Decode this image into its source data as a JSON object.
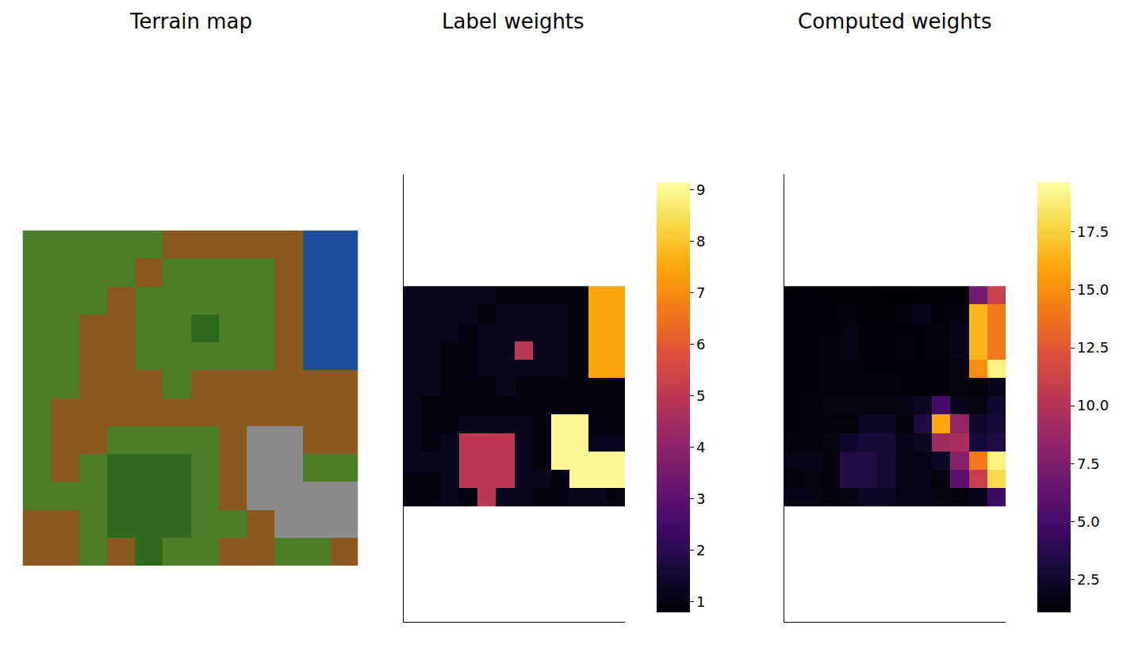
{
  "chart_data": [
    {
      "type": "image",
      "title": "Terrain map",
      "grid": [
        "GGGGGDDDDDWW",
        "GGGGDGGGGDWW",
        "GGGDGGGGGDWW",
        "GGDDGGFGGDWW",
        "GGDDGGGGGDWW",
        "GGDDDGDDDDDD",
        "GDDDDDDDDDDD",
        "GDDGGGGDRRDD",
        "GDGFFFGDRRGG",
        "GGGFFFGDRRRR",
        "DDGFFFGGDRRR",
        "DDGDFGGDDGGD"
      ],
      "colors": {
        "G": "#4e7d2b",
        "D": "#8b5a1e",
        "W": "#1f4f9a",
        "F": "#2d6a1e",
        "R": "#8a8a8a"
      }
    },
    {
      "type": "heatmap",
      "title": "Label weights",
      "z": [
        [
          1.2,
          1.2,
          1.2,
          1.2,
          1.2,
          1,
          1,
          1,
          1,
          1,
          7.5,
          7.5
        ],
        [
          1.2,
          1.2,
          1.2,
          1.2,
          1,
          1.2,
          1.2,
          1.2,
          1.2,
          1,
          7.5,
          7.5
        ],
        [
          1.2,
          1.2,
          1.2,
          1,
          1.2,
          1.2,
          1.2,
          1.2,
          1.2,
          1,
          7.5,
          7.5
        ],
        [
          1.2,
          1.2,
          1,
          1,
          1.2,
          1.2,
          5,
          1.2,
          1.2,
          1,
          7.5,
          7.5
        ],
        [
          1.2,
          1.2,
          1,
          1,
          1.2,
          1.2,
          1.2,
          1.2,
          1.2,
          1,
          7.5,
          7.5
        ],
        [
          1.2,
          1.2,
          1,
          1,
          1,
          1.2,
          1,
          1,
          1,
          1,
          1,
          1
        ],
        [
          1.2,
          1,
          1,
          1,
          1,
          1,
          1,
          1,
          1,
          1,
          1,
          1
        ],
        [
          1.2,
          1,
          1,
          1.2,
          1.2,
          1.2,
          1.2,
          1,
          9,
          9,
          1,
          1
        ],
        [
          1.2,
          1,
          1.2,
          5,
          5,
          5,
          1.2,
          1,
          9,
          9,
          1.2,
          1.2
        ],
        [
          1.2,
          1.2,
          1.2,
          5,
          5,
          5,
          1.2,
          1,
          9,
          9,
          9,
          9
        ],
        [
          1,
          1,
          1.2,
          5,
          5,
          5,
          1.2,
          1.2,
          1,
          9,
          9,
          9
        ],
        [
          1,
          1,
          1.2,
          1,
          5,
          1.2,
          1.2,
          1,
          1,
          1.2,
          1.2,
          1
        ]
      ],
      "xlim": [
        -0.5,
        11.5
      ],
      "ylim": [
        -6.6,
        17.8
      ],
      "tick_labels": false,
      "colorbar": {
        "range": [
          0.8,
          9.15
        ],
        "ticks": [
          1,
          2,
          3,
          4,
          5,
          6,
          7,
          8,
          9
        ]
      }
    },
    {
      "type": "heatmap",
      "title": "Computed weights",
      "z": [
        [
          1.3,
          1.3,
          1.2,
          1.2,
          1.2,
          1.1,
          1.1,
          1.2,
          1.2,
          1.3,
          7,
          11
        ],
        [
          1.3,
          1.3,
          1.3,
          1.4,
          1.2,
          1.2,
          1.5,
          1.7,
          1.3,
          1.4,
          16.5,
          14
        ],
        [
          1.3,
          1.3,
          1.3,
          1.6,
          1.3,
          1.3,
          1.3,
          1.3,
          1.5,
          1.8,
          16.5,
          14
        ],
        [
          1.3,
          1.3,
          1.4,
          1.6,
          1.3,
          1.3,
          1.5,
          1.3,
          1.4,
          1.9,
          16.5,
          14
        ],
        [
          1.3,
          1.3,
          1.4,
          1.5,
          1.3,
          1.3,
          1.3,
          1.3,
          1.3,
          1.6,
          15,
          19
        ],
        [
          1.3,
          1.3,
          1.5,
          1.5,
          1.4,
          1.4,
          1.3,
          1.3,
          1.3,
          1.6,
          1.4,
          1.8
        ],
        [
          1.3,
          1.4,
          1.6,
          1.6,
          1.6,
          1.6,
          1.7,
          2.2,
          5,
          1.8,
          1.6,
          2.5
        ],
        [
          1.3,
          1.4,
          1.5,
          1.5,
          2.3,
          2.3,
          1.5,
          3.5,
          16,
          8.5,
          2.5,
          3
        ],
        [
          1.4,
          1.5,
          1.6,
          2.5,
          3,
          3,
          1.8,
          2.2,
          9,
          9.5,
          3,
          3.5
        ],
        [
          1.7,
          1.7,
          1.5,
          3.5,
          3.5,
          3,
          1.6,
          1.8,
          2.3,
          8,
          14,
          19
        ],
        [
          1.5,
          1.6,
          1.5,
          3.5,
          3.5,
          3,
          1.6,
          1.8,
          1.5,
          6,
          11,
          18
        ],
        [
          1.7,
          1.7,
          1.4,
          1.6,
          2.3,
          2.2,
          1.8,
          1.9,
          1.6,
          1.5,
          1.8,
          4.5
        ]
      ],
      "xlim": [
        -0.5,
        11.5
      ],
      "ylim": [
        -6.6,
        17.8
      ],
      "tick_labels": false,
      "colorbar": {
        "range": [
          1.08,
          19.65
        ],
        "ticks": [
          2.5,
          {
            "value": 5,
            "label": "5.0"
          },
          7.5,
          {
            "value": 10,
            "label": "10.0"
          },
          12.5,
          {
            "value": 15,
            "label": "15.0"
          },
          17.5
        ]
      }
    }
  ]
}
